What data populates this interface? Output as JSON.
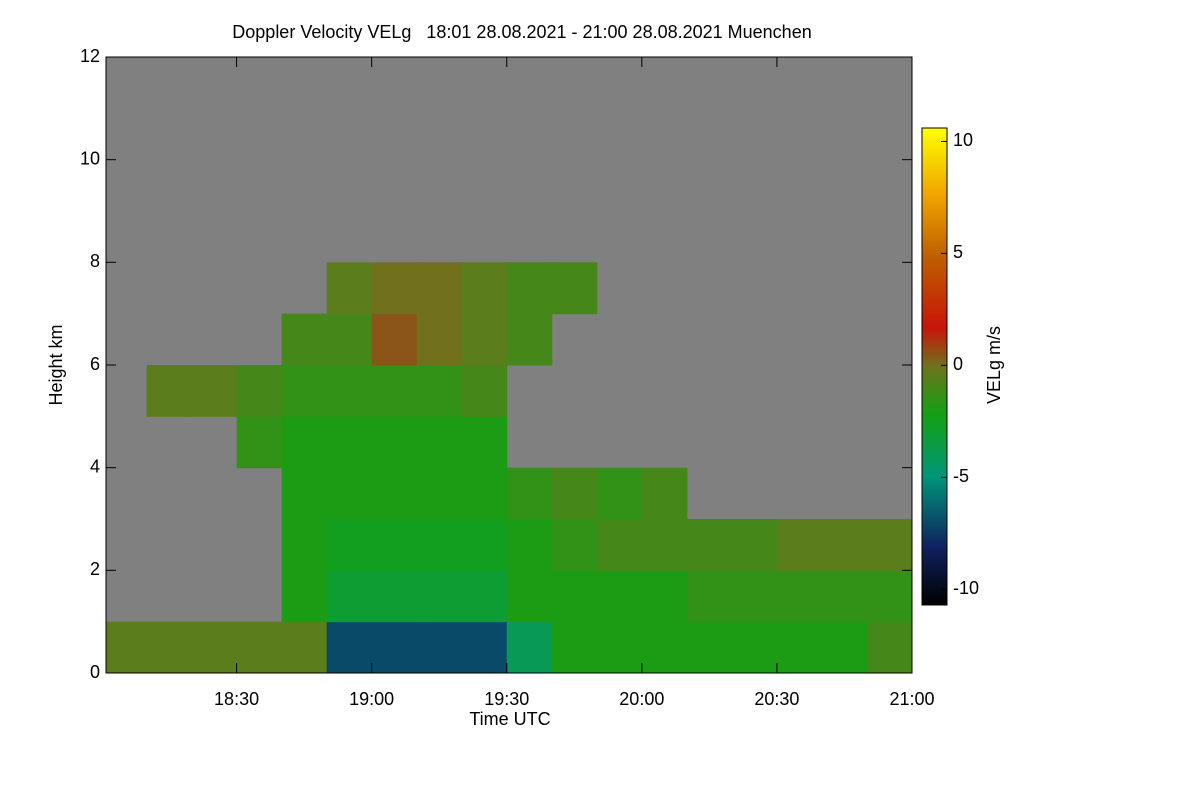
{
  "chart_data": {
    "type": "heatmap",
    "title": "Doppler Velocity VELg   18:01 28.08.2021 - 21:00 28.08.2021 Muenchen",
    "x_label": "Time UTC",
    "y_label": "Height km",
    "z_label": "VELg m/s",
    "xlim": [
      1081,
      1260
    ],
    "xticks": [
      {
        "value": 1110,
        "label": "18:30"
      },
      {
        "value": 1140,
        "label": "19:00"
      },
      {
        "value": 1170,
        "label": "19:30"
      },
      {
        "value": 1200,
        "label": "20:00"
      },
      {
        "value": 1230,
        "label": "20:30"
      },
      {
        "value": 1260,
        "label": "21:00"
      }
    ],
    "ylim": [
      0,
      12
    ],
    "yticks": [
      0,
      2,
      4,
      6,
      8,
      10,
      12
    ],
    "zlim": [
      -10.7,
      10.6
    ],
    "zticks": [
      -10,
      -5,
      0,
      5,
      10
    ],
    "xbins": [
      1081,
      1090,
      1100,
      1110,
      1120,
      1130,
      1140,
      1150,
      1160,
      1170,
      1180,
      1190,
      1200,
      1210,
      1220,
      1230,
      1240,
      1250,
      1260
    ],
    "ybins": [
      0,
      1,
      2,
      3,
      4,
      5,
      6,
      7,
      8,
      9,
      10,
      11,
      12
    ],
    "z": [
      [
        -0.5,
        -0.5,
        -0.5,
        -0.5,
        -0.5,
        -7,
        -7,
        -7,
        -7,
        -4,
        -2,
        -2,
        -2,
        -2,
        -2,
        -2,
        -2,
        -1
      ],
      [
        null,
        null,
        null,
        null,
        -2,
        -3,
        -3,
        -3,
        -3,
        -2,
        -2,
        -2,
        -2,
        -1.5,
        -1.5,
        -1.5,
        -1.5,
        -1.5
      ],
      [
        null,
        null,
        null,
        null,
        -2,
        -2.5,
        -2.5,
        -2.5,
        -2.5,
        -2,
        -1.5,
        -1,
        -1,
        -1,
        -1,
        -0.5,
        -0.5,
        -0.5
      ],
      [
        null,
        null,
        null,
        null,
        -2,
        -2,
        -2,
        -2,
        -2,
        -1.5,
        -1,
        -1.5,
        -1,
        null,
        null,
        null,
        null,
        null
      ],
      [
        null,
        null,
        null,
        -1.5,
        -2,
        -2,
        -2,
        -2,
        -2,
        null,
        null,
        null,
        null,
        null,
        null,
        null,
        null,
        null
      ],
      [
        null,
        -0.5,
        -0.5,
        -1,
        -1.5,
        -1.5,
        -1.5,
        -1.5,
        -1,
        null,
        null,
        null,
        null,
        null,
        null,
        null,
        null,
        null
      ],
      [
        null,
        null,
        null,
        null,
        -1,
        -1,
        0.5,
        0,
        -0.5,
        -1,
        null,
        null,
        null,
        null,
        null,
        null,
        null,
        null
      ],
      [
        null,
        null,
        null,
        null,
        null,
        -0.5,
        0,
        0,
        -0.5,
        -1,
        -1,
        null,
        null,
        null,
        null,
        null,
        null,
        null
      ],
      [
        null,
        null,
        null,
        null,
        null,
        null,
        null,
        null,
        null,
        null,
        null,
        null,
        null,
        null,
        null,
        null,
        null,
        null
      ],
      [
        null,
        null,
        null,
        null,
        null,
        null,
        null,
        null,
        null,
        null,
        null,
        null,
        null,
        null,
        null,
        null,
        null,
        null
      ],
      [
        null,
        null,
        null,
        null,
        null,
        null,
        null,
        null,
        null,
        null,
        null,
        null,
        null,
        null,
        null,
        null,
        null,
        null
      ],
      [
        null,
        null,
        null,
        null,
        null,
        null,
        null,
        null,
        null,
        null,
        null,
        null,
        null,
        null,
        null,
        null,
        null,
        null
      ]
    ]
  }
}
